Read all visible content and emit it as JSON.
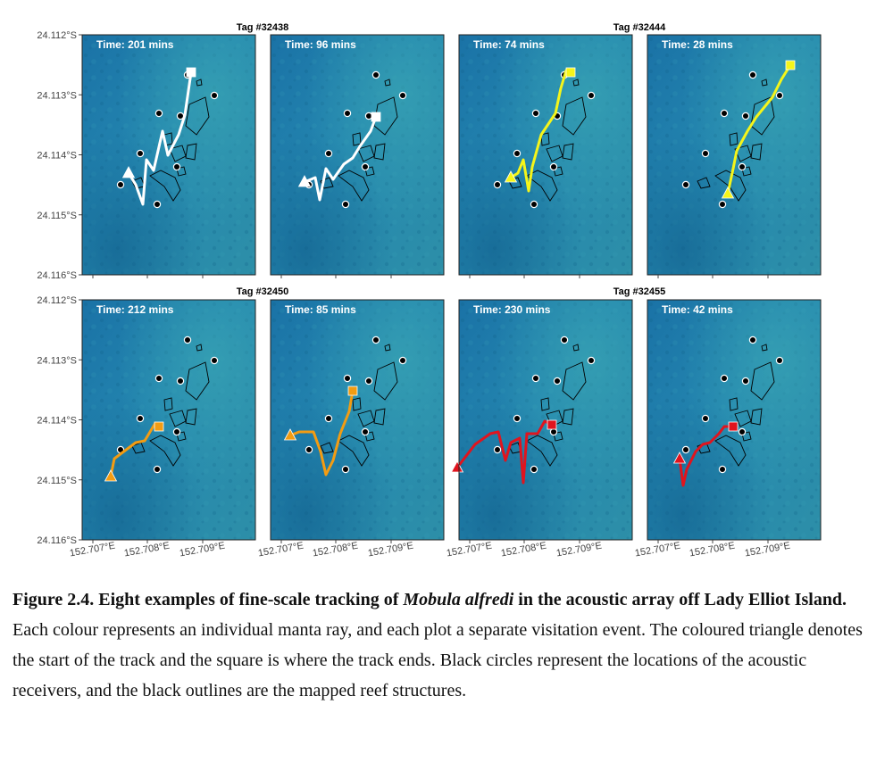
{
  "figure": {
    "y_ticks": [
      "24.112°S",
      "24.113°S",
      "24.114°S",
      "24.115°S",
      "24.116°S"
    ],
    "x_ticks": [
      "152.707°E",
      "152.708°E",
      "152.709°E"
    ],
    "tags": [
      "Tag #32438",
      "Tag #32444",
      "Tag #32450",
      "Tag #32455"
    ],
    "panels": [
      {
        "time": "Time: 201 mins",
        "color": "#ffffff"
      },
      {
        "time": "Time: 96 mins",
        "color": "#ffffff"
      },
      {
        "time": "Time: 74 mins",
        "color": "#f5f51a"
      },
      {
        "time": "Time: 28 mins",
        "color": "#f5f51a"
      },
      {
        "time": "Time: 212 mins",
        "color": "#f39c12"
      },
      {
        "time": "Time: 85 mins",
        "color": "#f39c12"
      },
      {
        "time": "Time: 230 mins",
        "color": "#e0141e"
      },
      {
        "time": "Time: 42 mins",
        "color": "#e0141e"
      }
    ]
  },
  "caption": {
    "label": "Figure 2.4. Eight examples of fine-scale tracking of ",
    "species": "Mobula alfredi",
    "label_end": " in the acoustic array off Lady Elliot Island.",
    "body": " Each colour represents an individual manta ray, and each plot a separate visitation event. The coloured triangle denotes the start of the track and the square is where the track ends. Black circles represent the locations of the acoustic receivers, and the black outlines are the mapped reef structures."
  }
}
